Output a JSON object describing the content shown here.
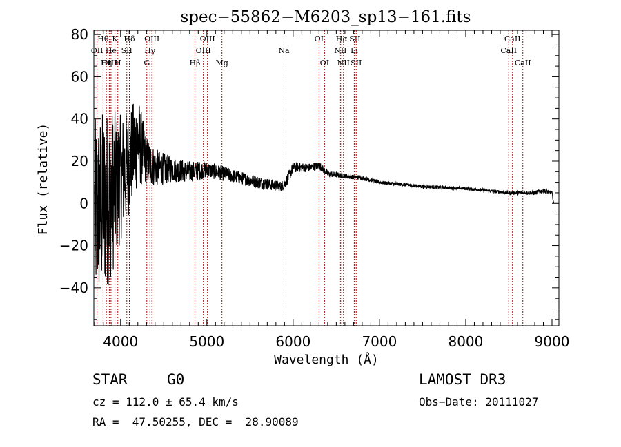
{
  "chart_data": {
    "type": "line",
    "title": "spec−55862−M6203_sp13−161.fits",
    "xlabel": "Wavelength (Å)",
    "ylabel": "Flux (relative)",
    "xlim": [
      3690,
      9080
    ],
    "ylim": [
      -58,
      82
    ],
    "xticks": [
      4000,
      5000,
      6000,
      7000,
      8000,
      9000
    ],
    "xtick_labels": [
      "4000",
      "5000",
      "6000",
      "7000",
      "8000",
      "9000"
    ],
    "yticks": [
      -40,
      -20,
      0,
      20,
      40,
      60,
      80
    ],
    "ytick_labels": [
      "−40",
      "−20",
      "0",
      "20",
      "40",
      "60",
      "80"
    ],
    "grid": false,
    "series": [
      {
        "name": "spectrum",
        "color": "#000000",
        "envelope": {
          "x": [
            3700,
            3800,
            3900,
            4000,
            4100,
            4200,
            4300,
            4400,
            4600,
            4800,
            5000,
            5200,
            5400,
            5600,
            5850,
            5900,
            6000,
            6200,
            6300,
            6400,
            6600,
            6800,
            7000,
            7500,
            8000,
            8500,
            8700,
            8800,
            8900,
            9000,
            9020
          ],
          "y": [
            -5,
            0,
            5,
            12,
            20,
            30,
            20,
            17,
            16,
            15,
            16,
            14,
            12,
            10,
            8,
            9,
            17,
            17,
            18,
            14,
            13,
            12,
            10,
            8,
            7,
            5,
            5,
            5,
            6,
            5,
            0
          ],
          "noise": [
            45,
            45,
            40,
            30,
            25,
            22,
            12,
            9,
            6,
            5,
            4,
            3.5,
            3,
            3,
            2.5,
            2.5,
            2.5,
            2,
            2,
            1.5,
            1.2,
            1,
            0.8,
            0.8,
            0.7,
            0.8,
            0.8,
            1,
            1,
            1,
            0
          ]
        }
      }
    ],
    "spectral_lines": [
      {
        "label": "Hθ",
        "wavelength": 3797,
        "row": 0
      },
      {
        "label": "K",
        "wavelength": 3934,
        "row": 0
      },
      {
        "label": "Hδ",
        "wavelength": 4102,
        "row": 0
      },
      {
        "label": "OIII",
        "wavelength": 4363,
        "row": 0
      },
      {
        "label": "OIII",
        "wavelength": 5007,
        "row": 0
      },
      {
        "label": "OI",
        "wavelength": 6300,
        "row": 0
      },
      {
        "label": "Hα",
        "wavelength": 6563,
        "row": 0
      },
      {
        "label": "SII",
        "wavelength": 6716,
        "row": 0
      },
      {
        "label": "CaII",
        "wavelength": 8542,
        "row": 0
      },
      {
        "label": "OII",
        "wavelength": 3727,
        "row": 1
      },
      {
        "label": "He",
        "wavelength": 3889,
        "row": 1
      },
      {
        "label": "SII",
        "wavelength": 4072,
        "row": 1
      },
      {
        "label": "Hγ",
        "wavelength": 4340,
        "row": 1
      },
      {
        "label": "OIII",
        "wavelength": 4959,
        "row": 1
      },
      {
        "label": "Na",
        "wavelength": 5893,
        "row": 1
      },
      {
        "label": "NII",
        "wavelength": 6548,
        "row": 1
      },
      {
        "label": "Li",
        "wavelength": 6708,
        "row": 1
      },
      {
        "label": "CaII",
        "wavelength": 8498,
        "row": 1
      },
      {
        "label": "OIII",
        "wavelength": 3869,
        "row": 2
      },
      {
        "label": "Hη",
        "wavelength": 3835,
        "row": 2
      },
      {
        "label": "H",
        "wavelength": 3968,
        "row": 2
      },
      {
        "label": "G",
        "wavelength": 4304,
        "row": 2
      },
      {
        "label": "Hβ",
        "wavelength": 4861,
        "row": 2
      },
      {
        "label": "Mg",
        "wavelength": 5175,
        "row": 2
      },
      {
        "label": "OI",
        "wavelength": 6364,
        "row": 2
      },
      {
        "label": "NII",
        "wavelength": 6583,
        "row": 2
      },
      {
        "label": "SII",
        "wavelength": 6731,
        "row": 2
      },
      {
        "label": "CaII",
        "wavelength": 8662,
        "row": 2
      }
    ],
    "line_marker_color": "#a01010"
  },
  "info": {
    "object_class": "STAR",
    "subclass": "G0",
    "redshift_line": "cz = 112.0 ± 65.4 km/s",
    "coords_line": "RA =  47.50255, DEC =  28.90089",
    "survey": "LAMOST DR3",
    "obs_date_line": "Obs−Date: 20111027"
  }
}
